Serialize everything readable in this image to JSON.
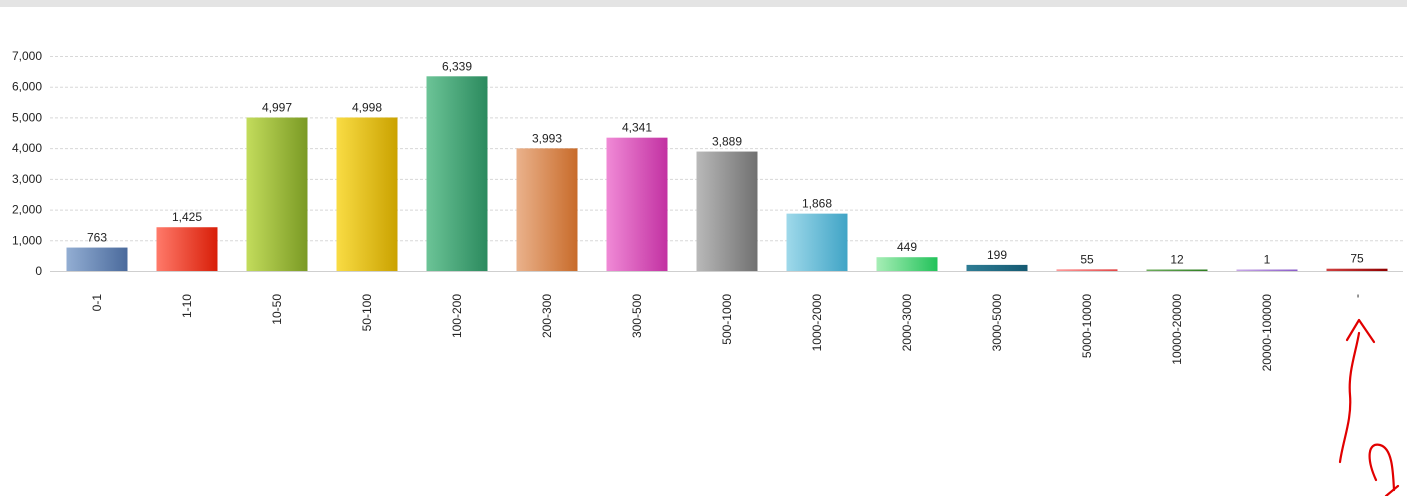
{
  "chart_data": {
    "type": "bar",
    "categories": [
      "0-1",
      "1-10",
      "10-50",
      "50-100",
      "100-200",
      "200-300",
      "300-500",
      "500-1000",
      "1000-2000",
      "2000-3000",
      "3000-5000",
      "5000-10000",
      "10000-20000",
      "20000-100000",
      "-"
    ],
    "values": [
      763,
      1425,
      4997,
      4998,
      6339,
      3993,
      4341,
      3889,
      1868,
      449,
      199,
      55,
      12,
      1,
      75
    ],
    "value_labels": [
      "763",
      "1,425",
      "4,997",
      "4,998",
      "6,339",
      "3,993",
      "4,341",
      "3,889",
      "1,868",
      "449",
      "199",
      "55",
      "12",
      "1",
      "75"
    ],
    "yticks": [
      0,
      1000,
      2000,
      3000,
      4000,
      5000,
      6000,
      7000
    ],
    "ytick_labels": [
      "0",
      "1,000",
      "2,000",
      "3,000",
      "4,000",
      "5,000",
      "6,000",
      "7,000"
    ],
    "ylim": [
      0,
      7000
    ],
    "grid": true,
    "legend": "none",
    "bar_colors": [
      [
        "#93aed3",
        "#4a6a9c"
      ],
      [
        "#ff7a6a",
        "#d81e08"
      ],
      [
        "#c3dc5c",
        "#7a9a24"
      ],
      [
        "#f9dc44",
        "#caa200"
      ],
      [
        "#6cc497",
        "#2b8a5e"
      ],
      [
        "#eab28c",
        "#c86b2a"
      ],
      [
        "#f08ad6",
        "#c231a2"
      ],
      [
        "#b9b9b9",
        "#707070"
      ],
      [
        "#9fd9ea",
        "#40a4c6"
      ],
      [
        "#a7eeb6",
        "#22c25a"
      ],
      [
        "#2f7d95",
        "#155a72"
      ],
      [
        "#ff9a9a",
        "#e24848"
      ],
      [
        "#6fae5e",
        "#2d7d20"
      ],
      [
        "#c8a8e8",
        "#8a5cc8"
      ],
      [
        "#d04040",
        "#900000"
      ]
    ],
    "annotation_color": "#e10000"
  }
}
